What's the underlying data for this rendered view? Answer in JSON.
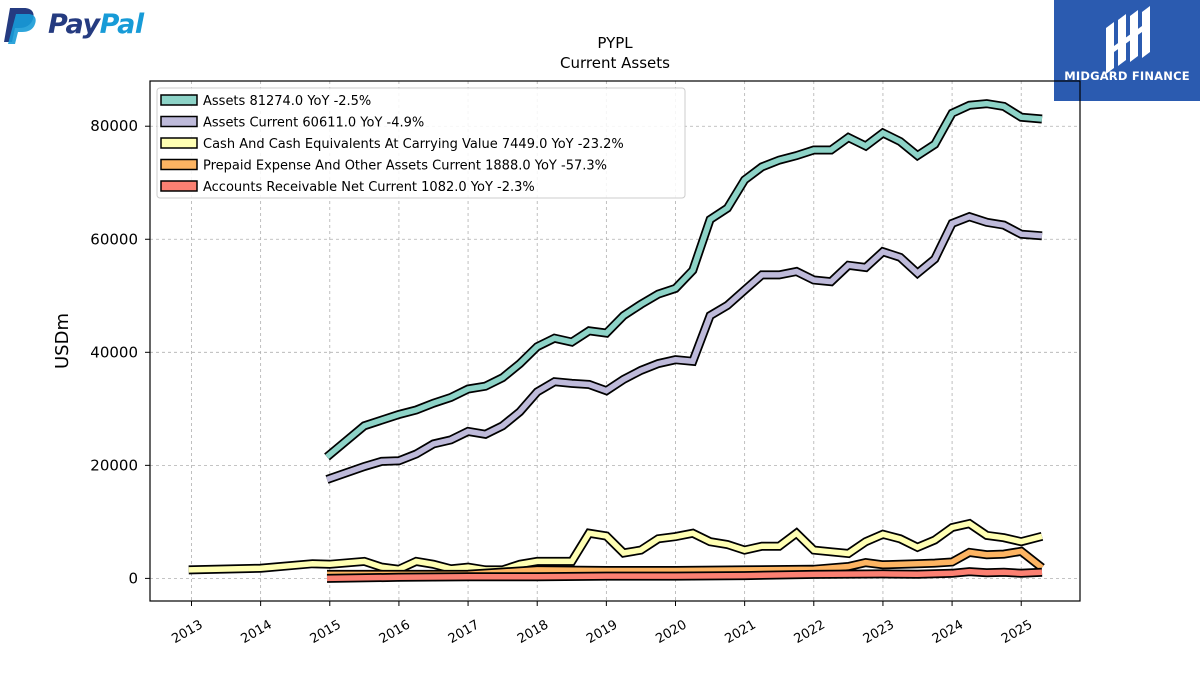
{
  "brand": {
    "left_logo_text": "PayPal",
    "right_logo_text": "MIDGARD FINANCE",
    "left_logo_colors": [
      "#253b80",
      "#179bd7"
    ],
    "right_logo_bg": "#2b5bb0"
  },
  "chart_data": {
    "type": "line",
    "title": "PYPL",
    "subtitle": "Current  Assets",
    "ylabel": "USDm",
    "xlabel": "",
    "xlim": [
      2012.4,
      2025.85
    ],
    "ylim": [
      -4000,
      88000
    ],
    "yticks": [
      0,
      20000,
      40000,
      60000,
      80000
    ],
    "ytick_labels": [
      "0",
      "20000",
      "40000",
      "60000",
      "80000"
    ],
    "xticks": [
      2013,
      2014,
      2015,
      2016,
      2017,
      2018,
      2019,
      2020,
      2021,
      2022,
      2023,
      2024,
      2025
    ],
    "xtick_labels": [
      "2013",
      "2014",
      "2015",
      "2016",
      "2017",
      "2018",
      "2019",
      "2020",
      "2021",
      "2022",
      "2023",
      "2024",
      "2025"
    ],
    "grid": true,
    "legend_position": "top-left",
    "series": [
      {
        "name": "Assets  81274.0 YoY -2.5%",
        "color": "#8dd3c7",
        "points": [
          [
            2014.96,
            21500
          ],
          [
            2015.5,
            27000
          ],
          [
            2015.75,
            28000
          ],
          [
            2016.0,
            29000
          ],
          [
            2016.25,
            29800
          ],
          [
            2016.5,
            31000
          ],
          [
            2016.75,
            32000
          ],
          [
            2017.0,
            33500
          ],
          [
            2017.25,
            34000
          ],
          [
            2017.5,
            35500
          ],
          [
            2017.75,
            38000
          ],
          [
            2018.0,
            41000
          ],
          [
            2018.25,
            42500
          ],
          [
            2018.5,
            41800
          ],
          [
            2018.75,
            43800
          ],
          [
            2019.0,
            43400
          ],
          [
            2019.25,
            46500
          ],
          [
            2019.5,
            48500
          ],
          [
            2019.75,
            50300
          ],
          [
            2020.0,
            51300
          ],
          [
            2020.25,
            54500
          ],
          [
            2020.5,
            63500
          ],
          [
            2020.75,
            65500
          ],
          [
            2021.0,
            70500
          ],
          [
            2021.25,
            72800
          ],
          [
            2021.5,
            74000
          ],
          [
            2021.75,
            74800
          ],
          [
            2022.0,
            75800
          ],
          [
            2022.25,
            75800
          ],
          [
            2022.5,
            78000
          ],
          [
            2022.75,
            76500
          ],
          [
            2023.0,
            78800
          ],
          [
            2023.25,
            77300
          ],
          [
            2023.5,
            74800
          ],
          [
            2023.75,
            76800
          ],
          [
            2024.0,
            82300
          ],
          [
            2024.25,
            83700
          ],
          [
            2024.5,
            84000
          ],
          [
            2024.75,
            83500
          ],
          [
            2025.0,
            81600
          ],
          [
            2025.3,
            81274
          ]
        ]
      },
      {
        "name": "Assets Current  60611.0 YoY -4.9%",
        "color": "#bebada",
        "points": [
          [
            2014.96,
            17500
          ],
          [
            2015.5,
            19800
          ],
          [
            2015.75,
            20700
          ],
          [
            2016.0,
            20800
          ],
          [
            2016.25,
            22000
          ],
          [
            2016.5,
            23800
          ],
          [
            2016.75,
            24500
          ],
          [
            2017.0,
            26000
          ],
          [
            2017.25,
            25500
          ],
          [
            2017.5,
            27000
          ],
          [
            2017.75,
            29500
          ],
          [
            2018.0,
            33000
          ],
          [
            2018.25,
            34800
          ],
          [
            2018.5,
            34500
          ],
          [
            2018.75,
            34300
          ],
          [
            2019.0,
            33200
          ],
          [
            2019.25,
            35200
          ],
          [
            2019.5,
            36800
          ],
          [
            2019.75,
            38000
          ],
          [
            2020.0,
            38700
          ],
          [
            2020.25,
            38400
          ],
          [
            2020.5,
            46500
          ],
          [
            2020.75,
            48300
          ],
          [
            2021.0,
            51000
          ],
          [
            2021.25,
            53700
          ],
          [
            2021.5,
            53700
          ],
          [
            2021.75,
            54300
          ],
          [
            2022.0,
            52800
          ],
          [
            2022.25,
            52500
          ],
          [
            2022.5,
            55400
          ],
          [
            2022.75,
            55000
          ],
          [
            2023.0,
            57800
          ],
          [
            2023.25,
            56800
          ],
          [
            2023.5,
            54000
          ],
          [
            2023.75,
            56500
          ],
          [
            2024.0,
            62800
          ],
          [
            2024.25,
            64000
          ],
          [
            2024.5,
            63000
          ],
          [
            2024.75,
            62500
          ],
          [
            2025.0,
            60900
          ],
          [
            2025.3,
            60611
          ]
        ]
      },
      {
        "name": "Cash And Cash Equivalents At Carrying Value  7449.0 YoY -23.2%",
        "color": "#ffffb3",
        "points": [
          [
            2012.96,
            1500
          ],
          [
            2014.0,
            1800
          ],
          [
            2014.75,
            2600
          ],
          [
            2015.0,
            2500
          ],
          [
            2015.5,
            3000
          ],
          [
            2015.75,
            2000
          ],
          [
            2016.0,
            1600
          ],
          [
            2016.25,
            3000
          ],
          [
            2016.5,
            2500
          ],
          [
            2016.75,
            1700
          ],
          [
            2017.0,
            2000
          ],
          [
            2017.25,
            1500
          ],
          [
            2017.5,
            1500
          ],
          [
            2017.75,
            2500
          ],
          [
            2018.0,
            3000
          ],
          [
            2018.25,
            3000
          ],
          [
            2018.5,
            3000
          ],
          [
            2018.75,
            8000
          ],
          [
            2019.0,
            7500
          ],
          [
            2019.25,
            4500
          ],
          [
            2019.5,
            5000
          ],
          [
            2019.75,
            7000
          ],
          [
            2020.0,
            7400
          ],
          [
            2020.25,
            8000
          ],
          [
            2020.5,
            6500
          ],
          [
            2020.75,
            6000
          ],
          [
            2021.0,
            5000
          ],
          [
            2021.25,
            5700
          ],
          [
            2021.5,
            5700
          ],
          [
            2021.75,
            8000
          ],
          [
            2022.0,
            5000
          ],
          [
            2022.25,
            4700
          ],
          [
            2022.5,
            4400
          ],
          [
            2022.75,
            6500
          ],
          [
            2023.0,
            7800
          ],
          [
            2023.25,
            7000
          ],
          [
            2023.5,
            5500
          ],
          [
            2023.75,
            6800
          ],
          [
            2024.0,
            9000
          ],
          [
            2024.25,
            9700
          ],
          [
            2024.5,
            7600
          ],
          [
            2024.75,
            7200
          ],
          [
            2025.0,
            6500
          ],
          [
            2025.3,
            7449
          ]
        ]
      },
      {
        "name": "Prepaid Expense And Other Assets Current  1888.0 YoY -57.3%",
        "color": "#fdb462",
        "points": [
          [
            2014.96,
            700
          ],
          [
            2016.0,
            700
          ],
          [
            2017.0,
            750
          ],
          [
            2018.0,
            1500
          ],
          [
            2019.0,
            1400
          ],
          [
            2020.0,
            1400
          ],
          [
            2021.0,
            1500
          ],
          [
            2022.0,
            1600
          ],
          [
            2022.5,
            2100
          ],
          [
            2022.75,
            2800
          ],
          [
            2023.0,
            2400
          ],
          [
            2023.5,
            2600
          ],
          [
            2023.75,
            2700
          ],
          [
            2024.0,
            2900
          ],
          [
            2024.25,
            4600
          ],
          [
            2024.5,
            4200
          ],
          [
            2024.75,
            4300
          ],
          [
            2025.0,
            4800
          ],
          [
            2025.3,
            1888
          ]
        ]
      },
      {
        "name": "Accounts Receivable Net Current  1082.0 YoY -2.3%",
        "color": "#fb8072",
        "points": [
          [
            2014.96,
            0
          ],
          [
            2016.0,
            200
          ],
          [
            2017.0,
            300
          ],
          [
            2018.0,
            300
          ],
          [
            2019.0,
            400
          ],
          [
            2020.0,
            400
          ],
          [
            2021.0,
            500
          ],
          [
            2022.0,
            700
          ],
          [
            2023.0,
            800
          ],
          [
            2023.5,
            750
          ],
          [
            2024.0,
            900
          ],
          [
            2024.25,
            1200
          ],
          [
            2024.5,
            1000
          ],
          [
            2024.75,
            1100
          ],
          [
            2025.0,
            900
          ],
          [
            2025.3,
            1082
          ]
        ]
      }
    ]
  }
}
